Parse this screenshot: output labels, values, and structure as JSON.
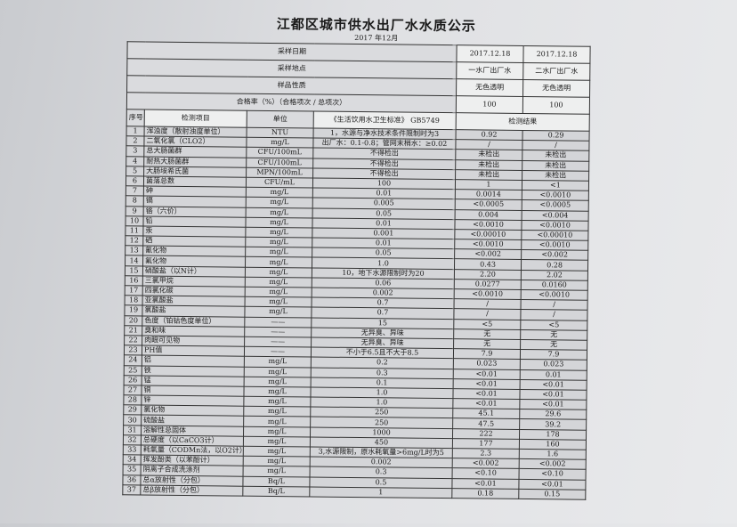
{
  "title": "江都区城市供水出厂水水质公示",
  "subtitle": "2017 年12月",
  "header_rows": [
    {
      "label": "采样日期",
      "v1": "2017.12.18",
      "v2": "2017.12.18"
    },
    {
      "label": "采样地点",
      "v1": "一水厂出厂水",
      "v2": "二水厂出厂水"
    },
    {
      "label": "样品性质",
      "v1": "无色透明",
      "v2": "无色透明"
    },
    {
      "label": "合格率（%）（合格项次 / 总项次）",
      "v1": "100",
      "v2": "100"
    }
  ],
  "columns": {
    "seq": "序号",
    "item": "检测项目",
    "unit": "单位",
    "standard": "《生活饮用水卫生标准》 GB5749",
    "result": "检测结果"
  },
  "rows": [
    [
      "1",
      "浑浊度（散射浊度单位）",
      "NTU",
      "1，水源与净水技术条件限制时为3",
      "0.92",
      "0.29"
    ],
    [
      "2",
      "二氧化氯（CLO2）",
      "mg/L",
      "出厂水：0.1-0.8；管网末梢水：≥0.02",
      "/",
      "/"
    ],
    [
      "3",
      "总大肠菌群",
      "CFU/100mL",
      "不得检出",
      "未检出",
      "未检出"
    ],
    [
      "4",
      "耐热大肠菌群",
      "CFU/100mL",
      "不得检出",
      "未检出",
      "未检出"
    ],
    [
      "5",
      "大肠埃希氏菌",
      "MPN/100mL",
      "不得检出",
      "未检出",
      "未检出"
    ],
    [
      "6",
      "菌落总数",
      "CFU/mL",
      "100",
      "1",
      "<1"
    ],
    [
      "7",
      "砷",
      "mg/L",
      "0.01",
      "0.0014",
      "<0.0010"
    ],
    [
      "8",
      "镉",
      "mg/L",
      "0.005",
      "<0.0005",
      "<0.0005"
    ],
    [
      "9",
      "铬（六价）",
      "mg/L",
      "0.05",
      "0.004",
      "<0.004"
    ],
    [
      "10",
      "铅",
      "mg/L",
      "0.01",
      "<0.0010",
      "<0.0010"
    ],
    [
      "11",
      "汞",
      "mg/L",
      "0.001",
      "<0.00010",
      "<0.00010"
    ],
    [
      "12",
      "硒",
      "mg/L",
      "0.01",
      "<0.0010",
      "<0.0010"
    ],
    [
      "13",
      "氰化物",
      "mg/L",
      "0.05",
      "<0.002",
      "<0.002"
    ],
    [
      "14",
      "氟化物",
      "mg/L",
      "1.0",
      "0.43",
      "0.28"
    ],
    [
      "15",
      "硝酸盐（以N计）",
      "mg/L",
      "10，地下水源限制时为20",
      "2.20",
      "2.02"
    ],
    [
      "16",
      "三氯甲烷",
      "mg/L",
      "0.06",
      "0.0277",
      "0.0160"
    ],
    [
      "17",
      "四氯化碳",
      "mg/L",
      "0.002",
      "<0.0010",
      "<0.0010"
    ],
    [
      "18",
      "亚氯酸盐",
      "mg/L",
      "0.7",
      "/",
      "/"
    ],
    [
      "19",
      "氯酸盐",
      "mg/L",
      "0.7",
      "/",
      "/"
    ],
    [
      "20",
      "色度（铂钴色度单位）",
      "——",
      "15",
      "<5",
      "<5"
    ],
    [
      "21",
      "臭和味",
      "——",
      "无异臭、异味",
      "无",
      "无"
    ],
    [
      "22",
      "肉眼可见物",
      "——",
      "无异臭、异味",
      "无",
      "无"
    ],
    [
      "23",
      "PH值",
      "——",
      "不小于6.5且不大于8.5",
      "7.9",
      "7.9"
    ],
    [
      "24",
      "铝",
      "mg/L",
      "0.2",
      "0.023",
      "0.023"
    ],
    [
      "25",
      "铁",
      "mg/L",
      "0.3",
      "<0.01",
      "0.01"
    ],
    [
      "26",
      "锰",
      "mg/L",
      "0.1",
      "<0.01",
      "<0.01"
    ],
    [
      "27",
      "铜",
      "mg/L",
      "1.0",
      "<0.01",
      "<0.01"
    ],
    [
      "28",
      "锌",
      "mg/L",
      "1.0",
      "<0.01",
      "<0.01"
    ],
    [
      "29",
      "氯化物",
      "mg/L",
      "250",
      "45.1",
      "29.6"
    ],
    [
      "30",
      "硫酸盐",
      "mg/L",
      "250",
      "47.5",
      "39.2"
    ],
    [
      "31",
      "溶解性总固体",
      "mg/L",
      "1000",
      "222",
      "178"
    ],
    [
      "32",
      "总硬度（以CaCO3计）",
      "mg/L",
      "450",
      "177",
      "160"
    ],
    [
      "33",
      "耗氧量（CODMn法，以O2计）",
      "mg/L",
      "3,水源限制，原水耗氧量>6mg/L时为5",
      "2.3",
      "1.6"
    ],
    [
      "34",
      "挥发酚类（以苯酚计）",
      "mg/L",
      "0.002",
      "<0.002",
      "<0.002"
    ],
    [
      "35",
      "阴离子合成洗涤剂",
      "mg/L",
      "0.3",
      "<0.10",
      "<0.10"
    ],
    [
      "36",
      "总α放射性（分包）",
      "Bq/L",
      "0.5",
      "<0.01",
      "<0.01"
    ],
    [
      "37",
      "总β放射性（分包）",
      "Bq/L",
      "1",
      "0.18",
      "0.15"
    ]
  ]
}
